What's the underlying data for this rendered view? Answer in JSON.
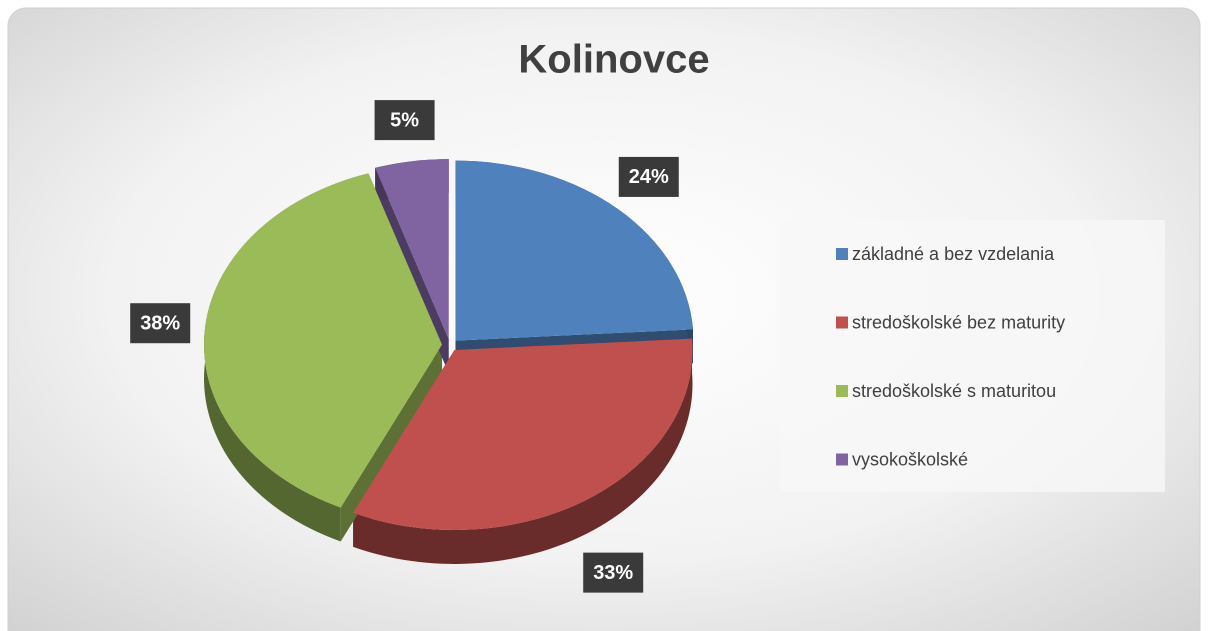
{
  "chart_data": {
    "type": "pie",
    "title": "Kolinovce",
    "categories": [
      "základné a bez vzdelania",
      "stredoškolské bez maturity",
      "stredoškolské s maturitou",
      "vysokoškolské"
    ],
    "values": [
      24,
      33,
      38,
      5
    ],
    "value_labels": [
      "24%",
      "33%",
      "38%",
      "5%"
    ],
    "colors": [
      "#4f81bd",
      "#c0504d",
      "#9bbb59",
      "#8064a2"
    ],
    "legend": "right"
  }
}
